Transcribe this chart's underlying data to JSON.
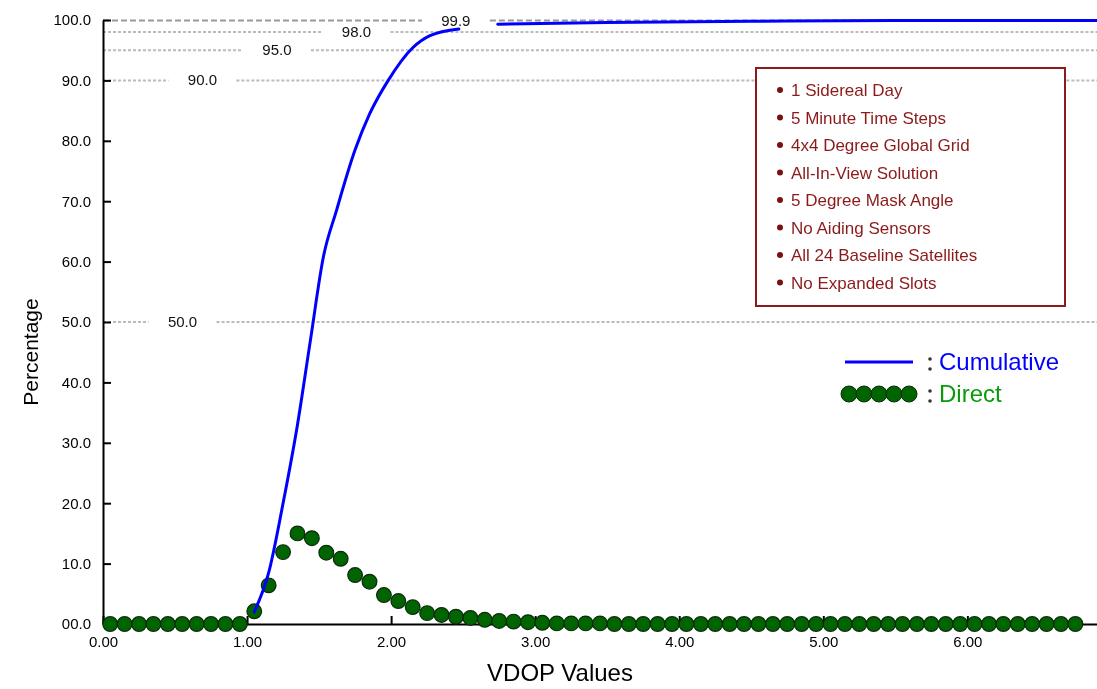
{
  "chart_data": {
    "type": "line",
    "xlabel": "VDOP Values",
    "ylabel": "Percentage",
    "xlim": [
      0,
      6.9
    ],
    "ylim": [
      0,
      100
    ],
    "xticks": [
      {
        "value": 0,
        "label": "0.00"
      },
      {
        "value": 1,
        "label": "1.00"
      },
      {
        "value": 2,
        "label": "2.00"
      },
      {
        "value": 3,
        "label": "3.00"
      },
      {
        "value": 4,
        "label": "4.00"
      },
      {
        "value": 5,
        "label": "5.00"
      },
      {
        "value": 6,
        "label": "6.00"
      }
    ],
    "yticks": [
      {
        "value": 0,
        "label": "00.0"
      },
      {
        "value": 10,
        "label": "10.0"
      },
      {
        "value": 20,
        "label": "20.0"
      },
      {
        "value": 30,
        "label": "30.0"
      },
      {
        "value": 40,
        "label": "40.0"
      },
      {
        "value": 50,
        "label": "50.0"
      },
      {
        "value": 60,
        "label": "60.0"
      },
      {
        "value": 70,
        "label": "70.0"
      },
      {
        "value": 80,
        "label": "80.0"
      },
      {
        "value": 90,
        "label": "90.0"
      },
      {
        "value": 100,
        "label": "100.0"
      }
    ],
    "grid": false,
    "legend": "right",
    "series": [
      {
        "name": "Cumulative",
        "color": "#0000ff",
        "marker": "none",
        "line_style": "solid",
        "x": [
          1.05,
          1.15,
          1.25,
          1.35,
          1.44,
          1.53,
          1.62,
          1.75,
          1.85,
          1.98,
          2.15,
          2.27,
          2.47,
          2.6,
          2.74,
          3.5,
          4.5,
          5.5,
          6.9
        ],
        "values": [
          2,
          8.5,
          20,
          33,
          47,
          60.8,
          68.4,
          78.5,
          84.4,
          90,
          95.4,
          97.4,
          98.5,
          null,
          99.3,
          99.6,
          99.8,
          99.9,
          99.9
        ]
      },
      {
        "name": "Direct",
        "type": "scatter",
        "color": "#006400",
        "marker": "circle",
        "x": [
          0.05,
          0.15,
          0.25,
          0.35,
          0.45,
          0.55,
          0.65,
          0.75,
          0.85,
          0.95,
          1.05,
          1.15,
          1.25,
          1.35,
          1.45,
          1.55,
          1.65,
          1.75,
          1.85,
          1.95,
          2.05,
          2.15,
          2.25,
          2.35,
          2.45,
          2.55,
          2.65,
          2.75,
          2.85,
          2.95,
          3.05,
          3.15,
          3.25,
          3.35,
          3.45,
          3.55,
          3.65,
          3.75,
          3.85,
          3.95,
          4.05,
          4.15,
          4.25,
          4.35,
          4.45,
          4.55,
          4.65,
          4.75,
          4.85,
          4.95,
          5.05,
          5.15,
          5.25,
          5.35,
          5.45,
          5.55,
          5.65,
          5.75,
          5.85,
          5.95,
          6.05,
          6.15,
          6.25,
          6.35,
          6.45,
          6.55,
          6.65,
          6.75
        ],
        "values": [
          0,
          0,
          0,
          0,
          0,
          0,
          0,
          0,
          0,
          0,
          2.1,
          6.4,
          11.9,
          15,
          14.2,
          11.8,
          10.8,
          8.1,
          7,
          4.8,
          3.8,
          2.8,
          1.8,
          1.5,
          1.2,
          1,
          0.7,
          0.5,
          0.4,
          0.3,
          0.2,
          0.1,
          0.1,
          0.1,
          0.1,
          0,
          0,
          0,
          0,
          0,
          0,
          0,
          0,
          0,
          0,
          0,
          0,
          0,
          0,
          0,
          0,
          0,
          0,
          0,
          0,
          0,
          0,
          0,
          0,
          0,
          0,
          0,
          0,
          0,
          0,
          0,
          0,
          0
        ]
      }
    ],
    "ref_lines": [
      {
        "axis": "y",
        "value": 50,
        "label": "50.0",
        "color": "#bbbbbb",
        "line_style": "dotted"
      },
      {
        "axis": "y",
        "value": 90,
        "label": "90.0",
        "color": "#bbbbbb",
        "line_style": "dotted"
      },
      {
        "axis": "y",
        "value": 95,
        "label": "95.0",
        "color": "#bbbbbb",
        "line_style": "dotted"
      },
      {
        "axis": "y",
        "value": 98,
        "label": "98.0",
        "color": "#bbbbbb",
        "line_style": "dotted"
      },
      {
        "axis": "y",
        "value": 99.9,
        "label": "99.9",
        "color": "#999999",
        "line_style": "dashed"
      }
    ],
    "annotations": [
      "1 Sidereal Day",
      "5 Minute Time Steps",
      "4x4 Degree Global Grid",
      "All-In-View Solution",
      "5 Degree Mask Angle",
      "No Aiding Sensors",
      "All 24 Baseline Satellites",
      "No Expanded Slots"
    ]
  }
}
